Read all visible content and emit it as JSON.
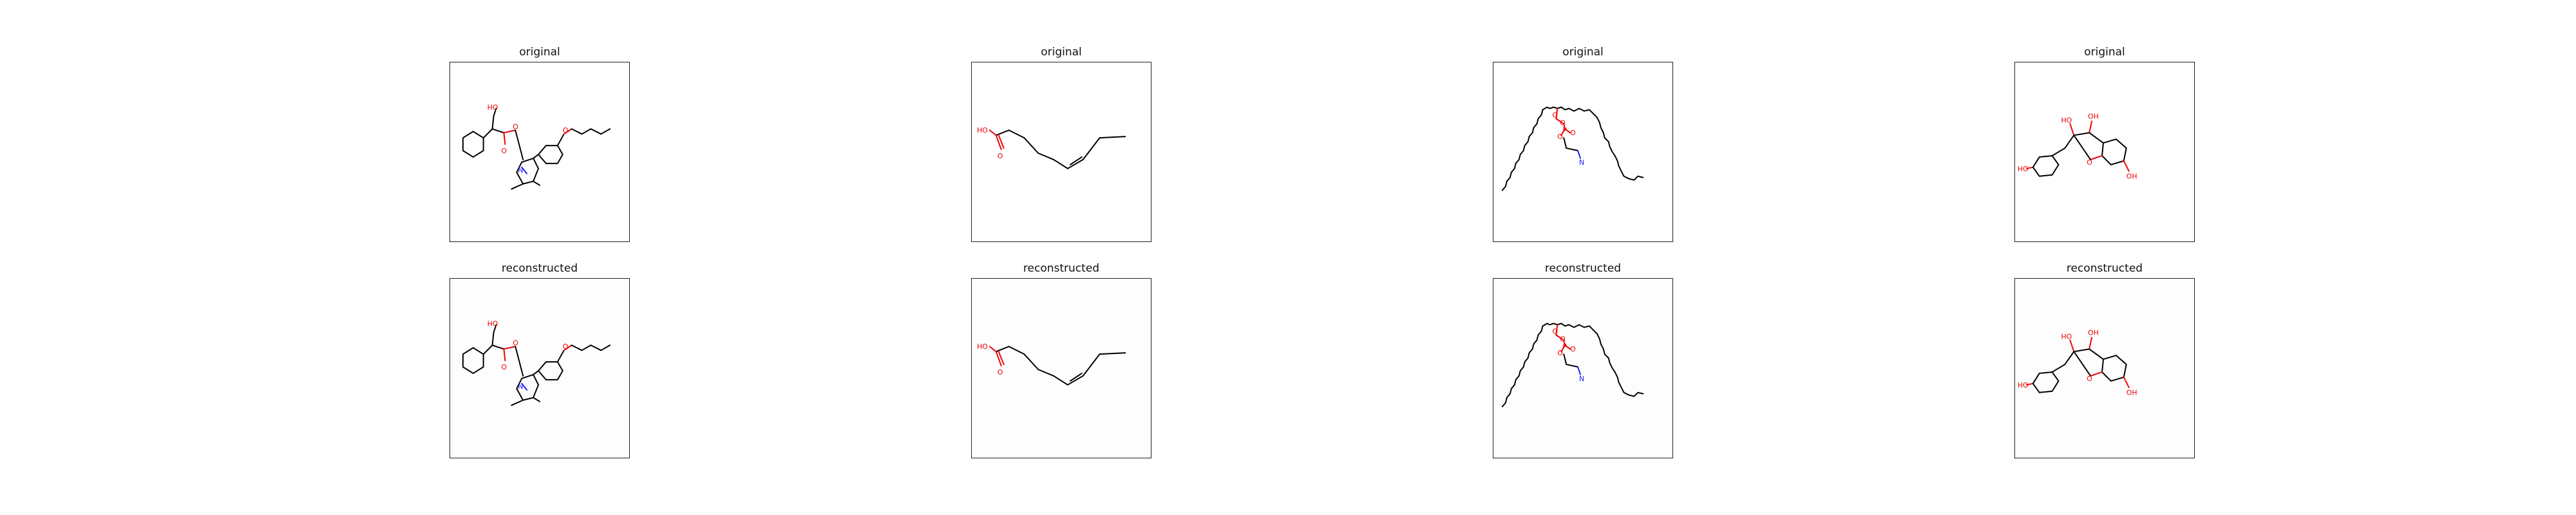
{
  "figure": {
    "columns": [
      {
        "original_title": "original",
        "reconstructed_title": "reconstructed"
      },
      {
        "original_title": "original",
        "reconstructed_title": "reconstructed"
      },
      {
        "original_title": "original",
        "reconstructed_title": "reconstructed"
      },
      {
        "original_title": "original",
        "reconstructed_title": "reconstructed"
      }
    ]
  },
  "molecules": {
    "m1": {
      "labels": [
        "HO",
        "O",
        "O",
        "O",
        "N"
      ]
    },
    "m2": {
      "labels": [
        "HO",
        "O"
      ]
    },
    "m3": {
      "labels": [
        "O",
        "O",
        "O",
        "P",
        "O",
        "N"
      ]
    },
    "m4": {
      "labels": [
        "HO",
        "HO",
        "OH",
        "O",
        "OH"
      ]
    }
  }
}
